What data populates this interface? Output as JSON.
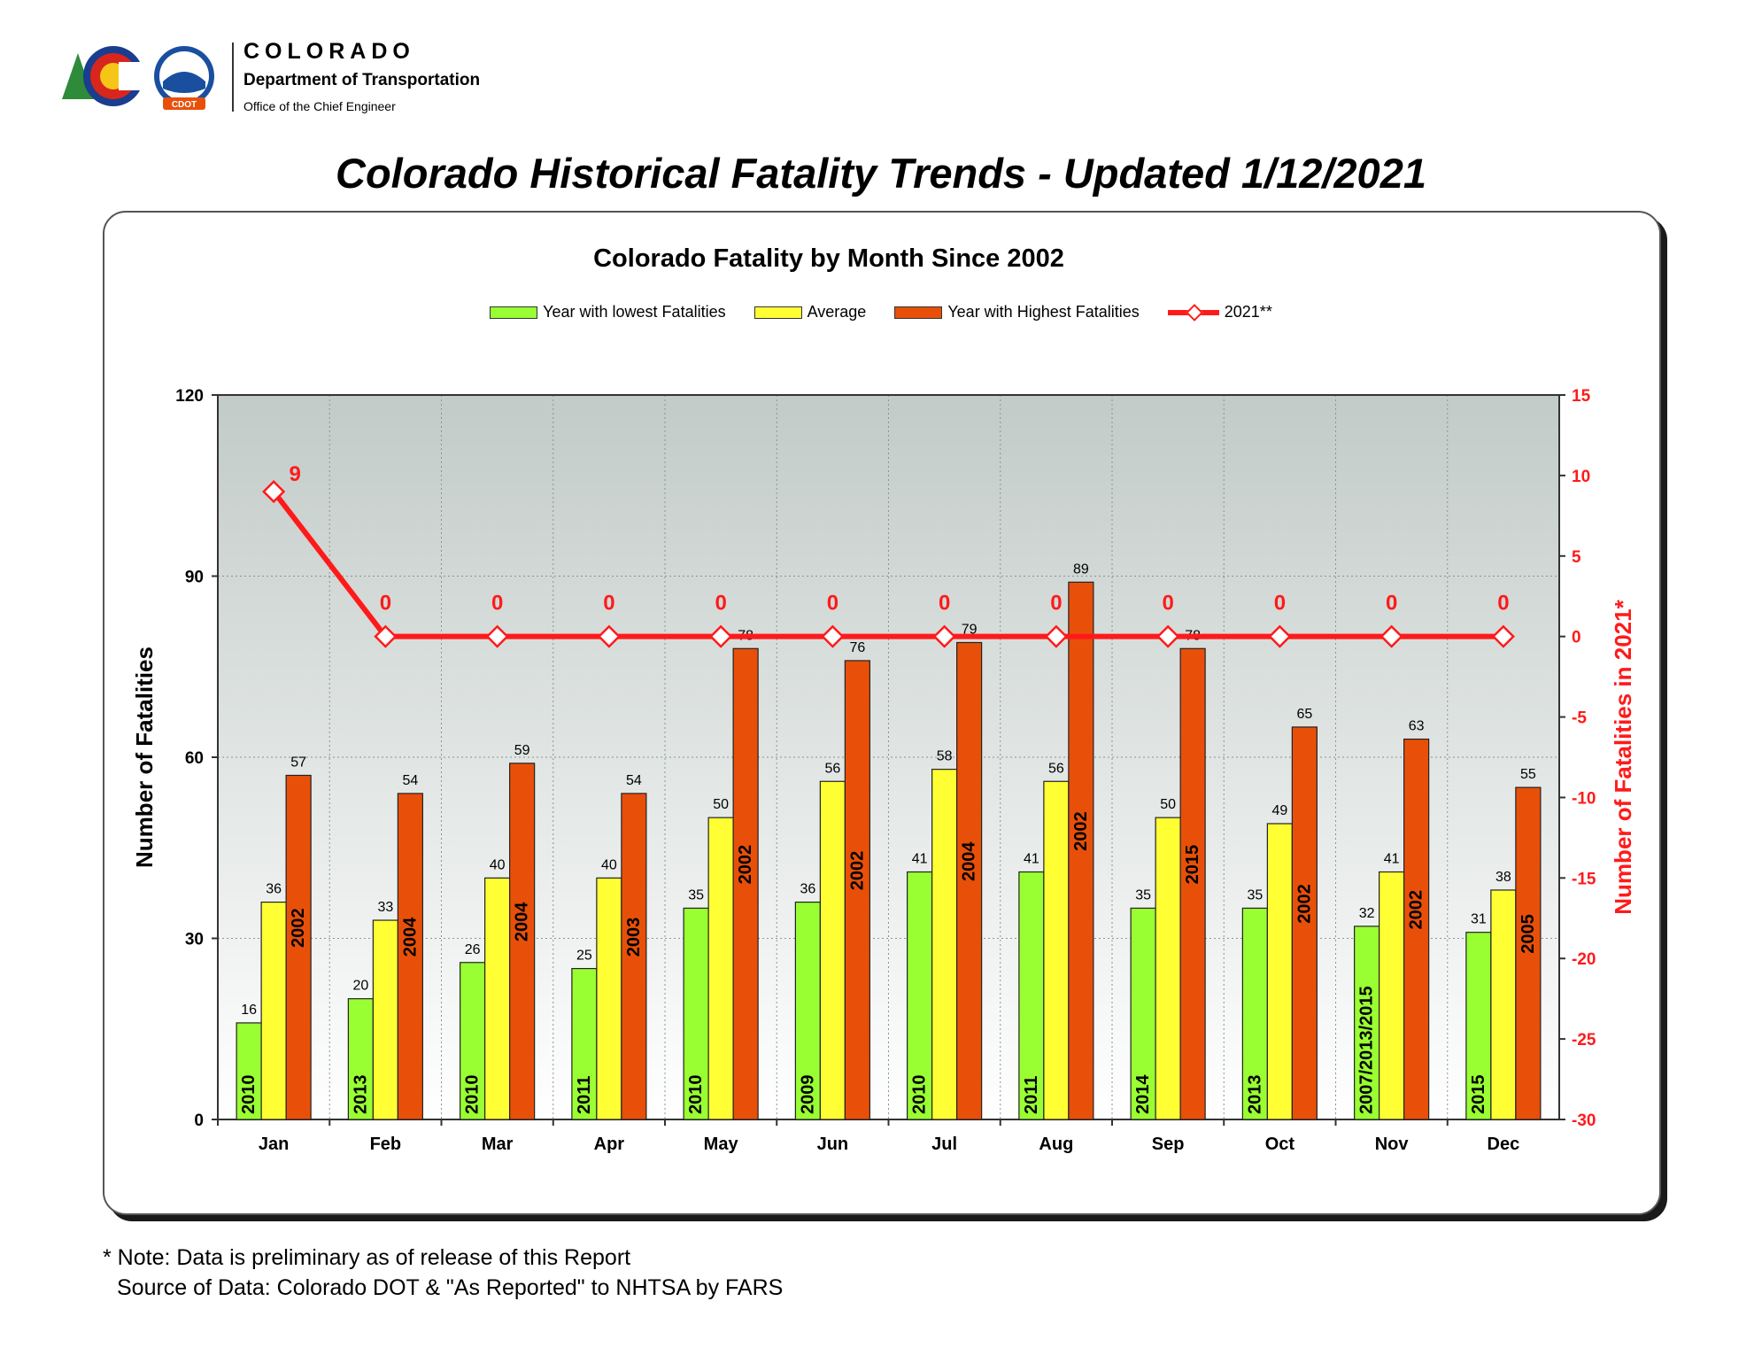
{
  "header": {
    "brand_name": "COLORADO",
    "department": "Department of Transportation",
    "office": "Office of the Chief Engineer",
    "badge_text": "CDOT",
    "main_title": "Colorado Historical Fatality Trends - Updated 1/12/2021"
  },
  "footer": {
    "note": "* Note: Data is preliminary as of release of this Report",
    "source": "Source of Data: Colorado DOT & \"As Reported\" to NHTSA by FARS"
  },
  "colors": {
    "lowest": "#99ff33",
    "average": "#ffff33",
    "highest": "#e8500a",
    "line2021": "#ff1a1a"
  },
  "chart_data": {
    "type": "bar",
    "title": "Colorado Fatality by Month Since 2002",
    "ylabel": "Number of Fatalities",
    "y2label": "Number of Fatalities in 2021*",
    "ylim": [
      0,
      120
    ],
    "yticks": [
      0,
      30,
      60,
      90,
      120
    ],
    "y2lim": [
      -30,
      15
    ],
    "y2ticks": [
      -30,
      -25,
      -20,
      -15,
      -10,
      -5,
      0,
      5,
      10,
      15
    ],
    "grid": true,
    "legend_position": "top",
    "categories": [
      "Jan",
      "Feb",
      "Mar",
      "Apr",
      "May",
      "Jun",
      "Jul",
      "Aug",
      "Sep",
      "Oct",
      "Nov",
      "Dec"
    ],
    "series": [
      {
        "name": "Year with lowest Fatalities",
        "values": [
          16,
          20,
          26,
          25,
          35,
          36,
          41,
          41,
          35,
          35,
          32,
          31
        ],
        "year_labels": [
          "2010",
          "2013",
          "2010",
          "2011",
          "2010",
          "2009",
          "2010",
          "2011",
          "2014",
          "2013",
          "2007/2013/2015",
          "2015"
        ]
      },
      {
        "name": "Average",
        "values": [
          36,
          33,
          40,
          40,
          50,
          56,
          58,
          56,
          50,
          49,
          41,
          38
        ]
      },
      {
        "name": "Year with Highest Fatalities",
        "values": [
          57,
          54,
          59,
          54,
          78,
          76,
          79,
          89,
          78,
          65,
          63,
          55
        ],
        "year_labels": [
          "2002",
          "2004",
          "2004",
          "2003",
          "2002",
          "2002",
          "2004",
          "2002",
          "2015",
          "2002",
          "2002",
          "2005"
        ]
      },
      {
        "name": "2021**",
        "type": "line",
        "axis": "right",
        "values": [
          9,
          0,
          0,
          0,
          0,
          0,
          0,
          0,
          0,
          0,
          0,
          0
        ]
      }
    ]
  }
}
